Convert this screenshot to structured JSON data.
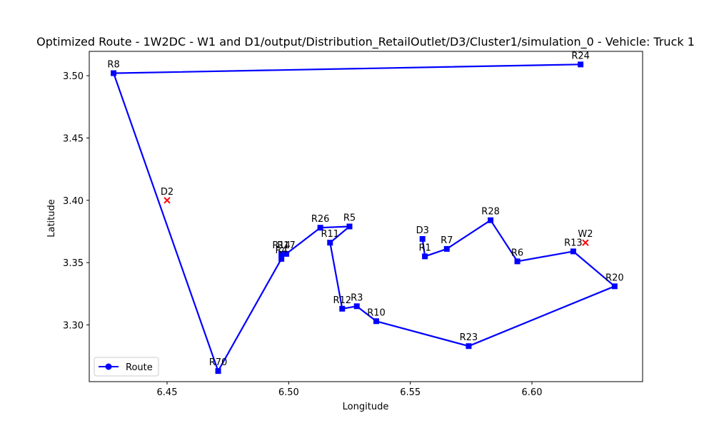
{
  "chart_data": {
    "type": "line",
    "title": "Optimized Route - 1W2DC - W1 and D1/output/Distribution_RetailOutlet/D3/Cluster1/simulation_0 - Vehicle: Truck 1",
    "xlabel": "Longitude",
    "ylabel": "Latitude",
    "xlim": [
      6.418,
      6.6455
    ],
    "ylim": [
      3.2545,
      3.5195
    ],
    "xticks": [
      6.45,
      6.5,
      6.55,
      6.6
    ],
    "xtick_labels": [
      "6.45",
      "6.50",
      "6.55",
      "6.60"
    ],
    "yticks": [
      3.3,
      3.35,
      3.4,
      3.45,
      3.5
    ],
    "ytick_labels": [
      "3.30",
      "3.35",
      "3.40",
      "3.45",
      "3.50"
    ],
    "grid": false,
    "legend": {
      "placement": "lower-left",
      "entries": [
        "Route"
      ]
    },
    "route": {
      "name": "Route",
      "color": "#0000ff",
      "points": [
        {
          "label": "D3",
          "x": 6.555,
          "y": 3.369
        },
        {
          "label": "R1",
          "x": 6.556,
          "y": 3.355
        },
        {
          "label": "R7",
          "x": 6.565,
          "y": 3.361
        },
        {
          "label": "R28",
          "x": 6.583,
          "y": 3.384
        },
        {
          "label": "R6",
          "x": 6.594,
          "y": 3.351
        },
        {
          "label": "R13",
          "x": 6.617,
          "y": 3.359
        },
        {
          "label": "R20",
          "x": 6.634,
          "y": 3.331
        },
        {
          "label": "R23",
          "x": 6.574,
          "y": 3.283
        },
        {
          "label": "R10",
          "x": 6.536,
          "y": 3.303
        },
        {
          "label": "R3",
          "x": 6.528,
          "y": 3.315
        },
        {
          "label": "R12",
          "x": 6.522,
          "y": 3.313
        },
        {
          "label": "R11",
          "x": 6.517,
          "y": 3.366
        },
        {
          "label": "R5",
          "x": 6.525,
          "y": 3.379
        },
        {
          "label": "R26",
          "x": 6.513,
          "y": 3.378
        },
        {
          "label": "R17",
          "x": 6.499,
          "y": 3.357
        },
        {
          "label": "R14",
          "x": 6.497,
          "y": 3.357
        },
        {
          "label": "R4",
          "x": 6.497,
          "y": 3.353
        },
        {
          "label": "R70",
          "x": 6.471,
          "y": 3.263
        },
        {
          "label": "R8",
          "x": 6.428,
          "y": 3.502
        },
        {
          "label": "R24",
          "x": 6.62,
          "y": 3.509
        }
      ]
    },
    "depots": {
      "color": "#ff0000",
      "marker": "x",
      "points": [
        {
          "label": "D2",
          "x": 6.45,
          "y": 3.4
        },
        {
          "label": "W2",
          "x": 6.622,
          "y": 3.366
        }
      ]
    }
  }
}
